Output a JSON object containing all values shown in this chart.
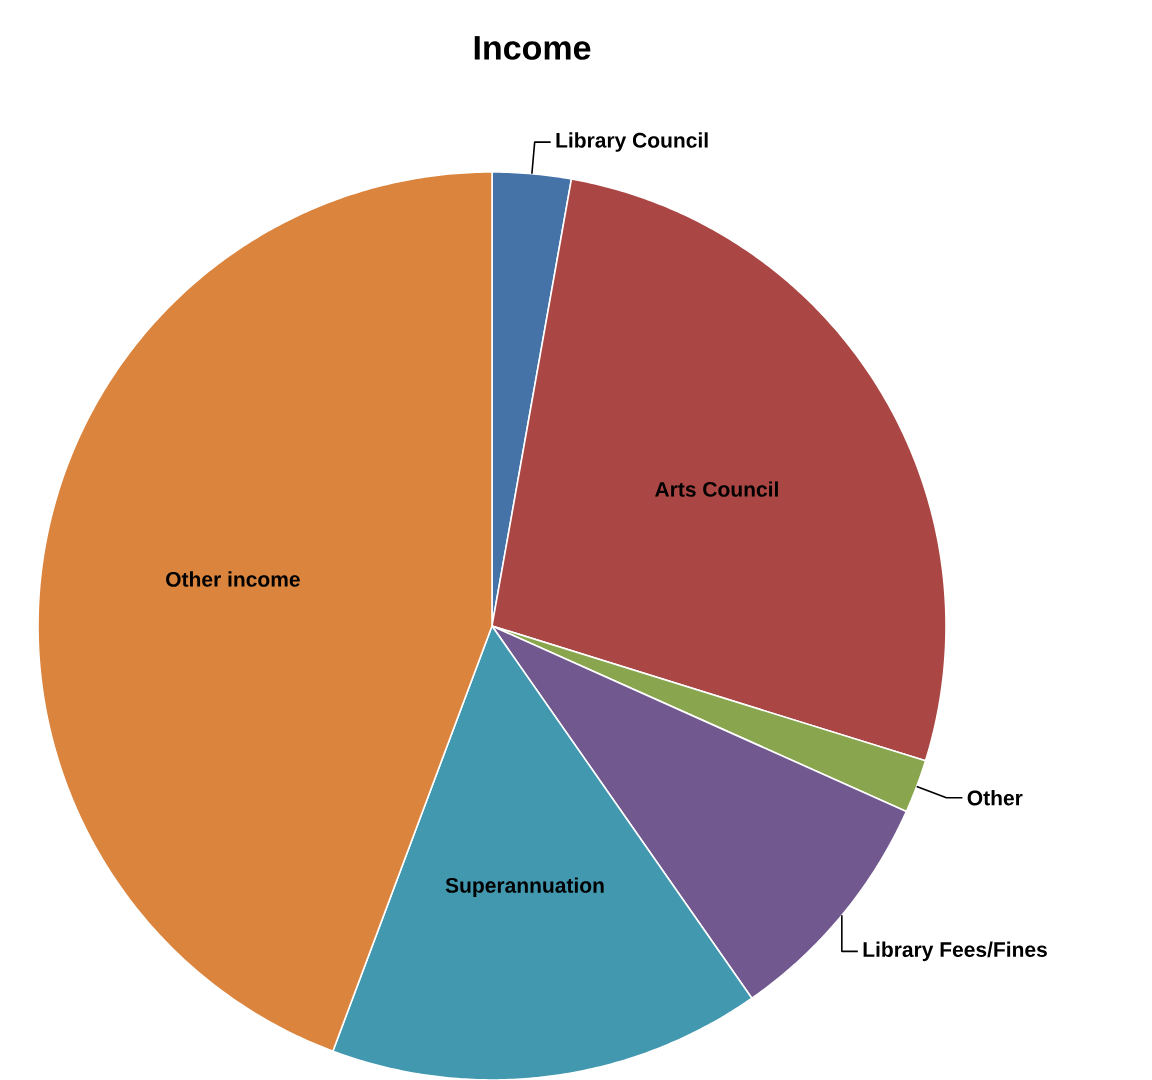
{
  "chart_data": {
    "type": "pie",
    "title": "Income",
    "categories": [
      "Library Council",
      "Arts Council",
      "Other",
      "Library Fees/Fines",
      "Superannuation",
      "Other income"
    ],
    "values": [
      2.8,
      27,
      1.9,
      8.6,
      15.4,
      44.3
    ],
    "colors": [
      "#4572a7",
      "#aa4643",
      "#89a54e",
      "#71588f",
      "#4198af",
      "#db843d"
    ]
  }
}
